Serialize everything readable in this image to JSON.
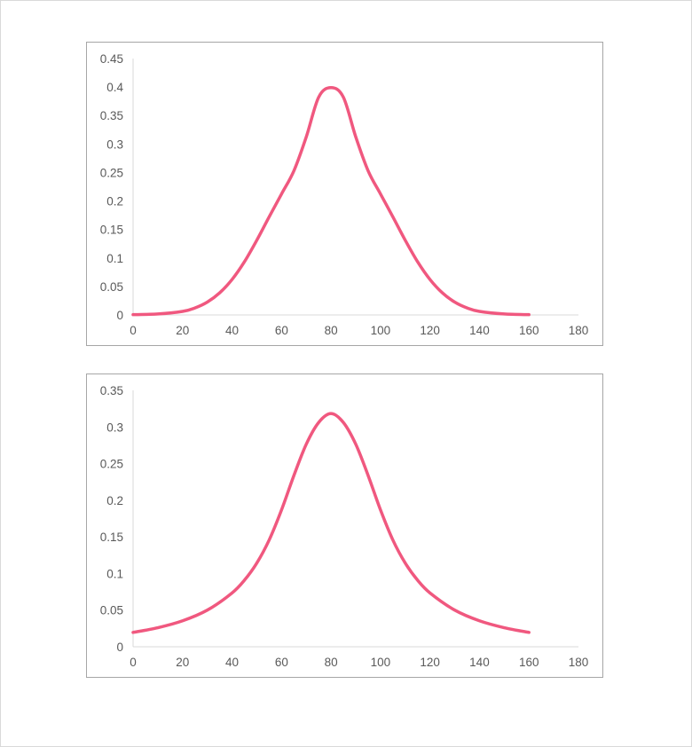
{
  "chart_data": [
    {
      "type": "line",
      "title": "",
      "xlabel": "",
      "ylabel": "",
      "xlim": [
        0,
        180
      ],
      "ylim": [
        0,
        0.45
      ],
      "x_ticks": [
        "0",
        "20",
        "40",
        "60",
        "80",
        "100",
        "120",
        "140",
        "160",
        "180"
      ],
      "y_ticks": [
        "0",
        "0.05",
        "0.1",
        "0.15",
        "0.2",
        "0.25",
        "0.3",
        "0.35",
        "0.4",
        "0.45"
      ],
      "grid": false,
      "legend": "none",
      "color": "#f0587f",
      "series": [
        {
          "x": [
            0,
            10,
            20,
            25,
            30,
            35,
            40,
            45,
            50,
            55,
            60,
            65,
            70,
            75,
            80,
            85,
            90,
            95,
            100,
            105,
            110,
            115,
            120,
            125,
            130,
            135,
            140,
            150,
            160
          ],
          "y": [
            0.0005,
            0.0017,
            0.0062,
            0.0122,
            0.0225,
            0.0388,
            0.0622,
            0.0933,
            0.1311,
            0.1722,
            0.2123,
            0.253,
            0.3125,
            0.3821,
            0.399,
            0.3821,
            0.3125,
            0.253,
            0.2123,
            0.1722,
            0.1311,
            0.0933,
            0.0622,
            0.0388,
            0.0225,
            0.0122,
            0.0062,
            0.0017,
            0.0005
          ]
        }
      ]
    },
    {
      "type": "line",
      "title": "",
      "xlabel": "",
      "ylabel": "",
      "xlim": [
        0,
        180
      ],
      "ylim": [
        0,
        0.35
      ],
      "x_ticks": [
        "0",
        "20",
        "40",
        "60",
        "80",
        "100",
        "120",
        "140",
        "160",
        "180"
      ],
      "y_ticks": [
        "0",
        "0.05",
        "0.1",
        "0.15",
        "0.2",
        "0.25",
        "0.3",
        "0.35"
      ],
      "grid": false,
      "legend": "none",
      "color": "#f0587f",
      "series": [
        {
          "x": [
            0,
            10,
            20,
            30,
            40,
            45,
            50,
            55,
            60,
            65,
            70,
            75,
            80,
            85,
            90,
            95,
            100,
            105,
            110,
            115,
            120,
            130,
            140,
            150,
            160
          ],
          "y": [
            0.0196,
            0.026,
            0.0354,
            0.05,
            0.0734,
            0.0908,
            0.1142,
            0.1457,
            0.1868,
            0.2338,
            0.2765,
            0.3061,
            0.3183,
            0.3061,
            0.2765,
            0.2338,
            0.1868,
            0.1457,
            0.1142,
            0.0908,
            0.0734,
            0.05,
            0.0354,
            0.026,
            0.0196
          ]
        }
      ]
    }
  ]
}
